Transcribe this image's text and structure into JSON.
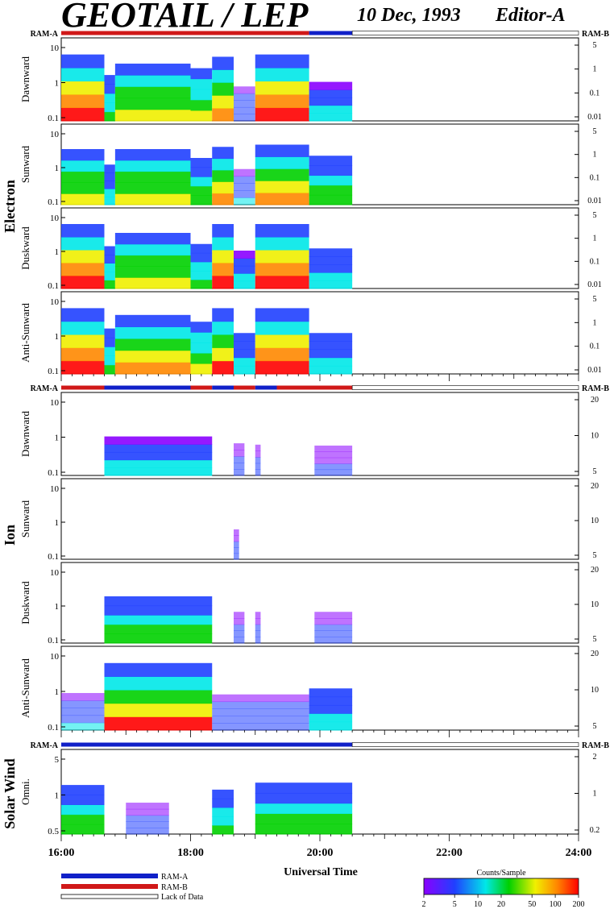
{
  "header": {
    "title": "GEOTAIL / LEP",
    "date": "10 Dec, 1993",
    "editor": "Editor-A"
  },
  "ram": {
    "a_label": "RAM-A",
    "b_label": "RAM-B"
  },
  "colors": {
    "ram_a": "#1020c8",
    "ram_b": "#d01818",
    "lack": "#ffffff"
  },
  "chart_data": {
    "type": "heatmap",
    "xlabel": "Universal Time",
    "x_ticks": [
      "16:00",
      "18:00",
      "20:00",
      "22:00",
      "24:00"
    ],
    "x_range": [
      "16:00",
      "24:00"
    ],
    "data_end": "20:30",
    "groups": [
      {
        "name": "Electron",
        "left_ticks": [
          "10",
          "1",
          "0.1"
        ],
        "right_ticks": [
          "5",
          "1",
          "0.1",
          "0.01"
        ],
        "ram_bar": [
          {
            "start": "16:00",
            "end": "19:50",
            "mode": "RAM-B"
          },
          {
            "start": "19:50",
            "end": "20:30",
            "mode": "RAM-A"
          },
          {
            "start": "20:30",
            "end": "24:00",
            "mode": "Lack of Data"
          }
        ],
        "panels": [
          {
            "label": "Dawnward",
            "activity": [
              [
                "16:00",
                "16:40",
                0.95
              ],
              [
                "16:40",
                "16:50",
                0.45
              ],
              [
                "16:50",
                "18:00",
                0.7
              ],
              [
                "18:00",
                "18:20",
                0.6
              ],
              [
                "18:20",
                "18:40",
                0.85
              ],
              [
                "18:40",
                "19:00",
                0.2
              ],
              [
                "19:00",
                "19:50",
                0.95
              ],
              [
                "19:50",
                "20:30",
                0.3
              ]
            ]
          },
          {
            "label": "Sunward",
            "activity": [
              [
                "16:00",
                "16:40",
                0.7
              ],
              [
                "16:40",
                "16:50",
                0.35
              ],
              [
                "16:50",
                "18:00",
                0.7
              ],
              [
                "18:00",
                "18:20",
                0.5
              ],
              [
                "18:20",
                "18:40",
                0.75
              ],
              [
                "18:40",
                "19:00",
                0.25
              ],
              [
                "19:00",
                "19:50",
                0.8
              ],
              [
                "19:50",
                "20:30",
                0.55
              ]
            ]
          },
          {
            "label": "Duskward",
            "activity": [
              [
                "16:00",
                "16:40",
                0.95
              ],
              [
                "16:40",
                "16:50",
                0.4
              ],
              [
                "16:50",
                "18:00",
                0.7
              ],
              [
                "18:00",
                "18:20",
                0.45
              ],
              [
                "18:20",
                "18:40",
                0.95
              ],
              [
                "18:40",
                "19:00",
                0.3
              ],
              [
                "19:00",
                "19:50",
                0.95
              ],
              [
                "19:50",
                "20:30",
                0.35
              ]
            ]
          },
          {
            "label": "Anti-Sunward",
            "activity": [
              [
                "16:00",
                "16:40",
                0.95
              ],
              [
                "16:40",
                "16:50",
                0.45
              ],
              [
                "16:50",
                "18:00",
                0.75
              ],
              [
                "18:00",
                "18:20",
                0.6
              ],
              [
                "18:20",
                "18:40",
                0.9
              ],
              [
                "18:40",
                "19:00",
                0.35
              ],
              [
                "19:00",
                "19:50",
                0.95
              ],
              [
                "19:50",
                "20:30",
                0.35
              ]
            ]
          }
        ]
      },
      {
        "name": "Ion",
        "left_ticks": [
          "10",
          "1",
          "0.1"
        ],
        "right_ticks": [
          "20",
          "10",
          "5"
        ],
        "ram_bar": [
          {
            "start": "16:00",
            "end": "16:40",
            "mode": "RAM-B"
          },
          {
            "start": "16:40",
            "end": "18:00",
            "mode": "RAM-A"
          },
          {
            "start": "18:00",
            "end": "18:20",
            "mode": "RAM-B"
          },
          {
            "start": "18:20",
            "end": "18:40",
            "mode": "RAM-A"
          },
          {
            "start": "18:40",
            "end": "19:00",
            "mode": "RAM-B"
          },
          {
            "start": "19:00",
            "end": "19:20",
            "mode": "RAM-A"
          },
          {
            "start": "19:20",
            "end": "20:30",
            "mode": "RAM-B"
          },
          {
            "start": "20:30",
            "end": "24:00",
            "mode": "Lack of Data"
          }
        ],
        "panels": [
          {
            "label": "Dawnward",
            "activity": [
              [
                "16:40",
                "18:20",
                0.3
              ],
              [
                "18:40",
                "18:50",
                0.15
              ],
              [
                "19:00",
                "19:05",
                0.12
              ],
              [
                "19:55",
                "20:30",
                0.1
              ]
            ]
          },
          {
            "label": "Sunward",
            "activity": [
              [
                "18:40",
                "18:45",
                0.12
              ]
            ]
          },
          {
            "label": "Duskward",
            "activity": [
              [
                "16:40",
                "18:20",
                0.5
              ],
              [
                "18:40",
                "18:50",
                0.15
              ],
              [
                "19:00",
                "19:05",
                0.15
              ],
              [
                "19:55",
                "20:30",
                0.15
              ]
            ]
          },
          {
            "label": "Anti-Sunward",
            "activity": [
              [
                "16:00",
                "16:40",
                0.25
              ],
              [
                "16:40",
                "18:20",
                0.9
              ],
              [
                "18:20",
                "19:50",
                0.22
              ],
              [
                "19:50",
                "20:30",
                0.35
              ]
            ]
          }
        ]
      },
      {
        "name": "Solar Wind",
        "left_ticks": [
          "5",
          "1",
          "0.5"
        ],
        "right_ticks": [
          "2",
          "1",
          "0.2"
        ],
        "ram_bar": [
          {
            "start": "16:00",
            "end": "20:30",
            "mode": "RAM-A"
          },
          {
            "start": "20:30",
            "end": "24:00",
            "mode": "Lack of Data"
          }
        ],
        "panels": [
          {
            "label": "Omni.",
            "activity": [
              [
                "16:00",
                "16:40",
                0.5
              ],
              [
                "17:00",
                "17:40",
                0.12
              ],
              [
                "18:20",
                "18:40",
                0.4
              ],
              [
                "19:00",
                "20:30",
                0.55
              ]
            ]
          }
        ]
      }
    ],
    "colorbar": {
      "title": "Counts/Sample",
      "ticks": [
        "2",
        "5",
        "10",
        "20",
        "50",
        "100",
        "200"
      ],
      "scale": "log",
      "range": [
        2,
        200
      ]
    },
    "legend": [
      {
        "label": "RAM-A",
        "color": "#1020c8"
      },
      {
        "label": "RAM-B",
        "color": "#d01818"
      },
      {
        "label": "Lack of Data",
        "color": "#ffffff"
      }
    ]
  }
}
